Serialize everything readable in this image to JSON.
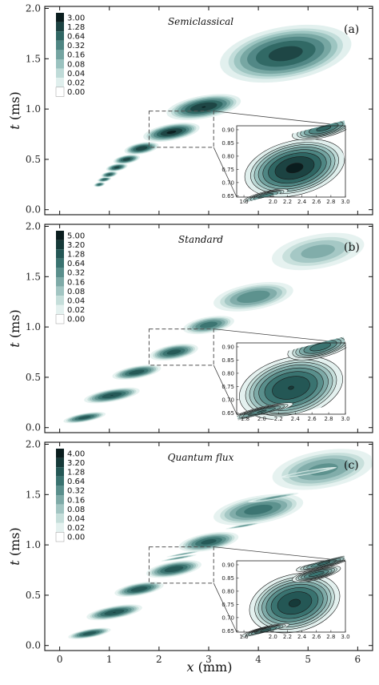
{
  "figure": {
    "xlabel_var": "x",
    "xlabel_unit": " (mm)",
    "ylabel_var": "t",
    "ylabel_unit": " (ms)"
  },
  "chart_data": [
    {
      "type": "heatmap",
      "title": "Semiclassical",
      "panel_label": "(a)",
      "xlim": [
        -0.3,
        6.3
      ],
      "ylim": [
        -0.05,
        2.02
      ],
      "x_ticks": [
        "0",
        "1",
        "2",
        "3",
        "4",
        "5",
        "6"
      ],
      "y_ticks": [
        "0.0",
        "0.5",
        "1.0",
        "1.5",
        "2.0"
      ],
      "colorbar_levels": [
        "3.00",
        "1.28",
        "0.64",
        "0.32",
        "0.16",
        "0.08",
        "0.04",
        "0.02",
        "0.00"
      ],
      "colors": [
        "#0a1d1e",
        "#1c4342",
        "#2f6663",
        "#4f8683",
        "#74a4a1",
        "#9ac2bf",
        "#bfdbd8",
        "#e0efed",
        "#ffffff"
      ],
      "blobs": [
        {
          "x": 0.8,
          "t": 0.25,
          "rx": 0.1,
          "rt": 0.02,
          "peak": 0.5
        },
        {
          "x": 0.9,
          "t": 0.3,
          "rx": 0.12,
          "rt": 0.02,
          "peak": 0.6
        },
        {
          "x": 1.0,
          "t": 0.35,
          "rx": 0.14,
          "rt": 0.025,
          "peak": 0.7
        },
        {
          "x": 1.15,
          "t": 0.42,
          "rx": 0.18,
          "rt": 0.03,
          "peak": 0.9
        },
        {
          "x": 1.35,
          "t": 0.5,
          "rx": 0.22,
          "rt": 0.035,
          "peak": 1.0
        },
        {
          "x": 1.65,
          "t": 0.61,
          "rx": 0.28,
          "rt": 0.045,
          "peak": 1.2
        },
        {
          "x": 2.25,
          "t": 0.77,
          "rx": 0.45,
          "rt": 0.065,
          "peak": 1.5
        },
        {
          "x": 2.9,
          "t": 1.02,
          "rx": 0.6,
          "rt": 0.09,
          "peak": 1.3
        },
        {
          "x": 4.55,
          "t": 1.55,
          "rx": 1.1,
          "rt": 0.22,
          "peak": 0.9
        }
      ],
      "streaks": [],
      "inset": {
        "xlim": [
          1.5,
          3.0
        ],
        "ylim": [
          0.645,
          0.915
        ],
        "x_ticks": [
          "1.6",
          "2.0",
          "2.2",
          "2.4",
          "2.6",
          "2.8",
          "3.0"
        ],
        "y_ticks": [
          "0.90",
          "0.85",
          "0.80",
          "0.75",
          "0.70",
          "0.65"
        ],
        "blobs": [
          {
            "x": 2.3,
            "t": 0.755,
            "rx": 0.55,
            "rt": 0.08,
            "peak": 1.5
          },
          {
            "x": 2.7,
            "t": 0.905,
            "rx": 0.4,
            "rt": 0.03,
            "peak": 0.4
          },
          {
            "x": 1.9,
            "t": 0.65,
            "rx": 0.3,
            "rt": 0.015,
            "peak": 0.25
          }
        ]
      }
    },
    {
      "type": "heatmap",
      "title": "Standard",
      "panel_label": "(b)",
      "xlim": [
        -0.3,
        6.3
      ],
      "ylim": [
        -0.05,
        2.02
      ],
      "x_ticks": [
        "0",
        "1",
        "2",
        "3",
        "4",
        "5",
        "6"
      ],
      "y_ticks": [
        "0.0",
        "0.5",
        "1.0",
        "1.5",
        "2.0"
      ],
      "colorbar_levels": [
        "5.00",
        "3.20",
        "1.28",
        "0.64",
        "0.32",
        "0.16",
        "0.08",
        "0.04",
        "0.02",
        "0.00"
      ],
      "colors": [
        "#0a1d1e",
        "#163a39",
        "#245755",
        "#3a7370",
        "#5a8f8c",
        "#7eaaa7",
        "#a2c5c2",
        "#c5deda",
        "#e4f1ef",
        "#ffffff"
      ],
      "blobs": [
        {
          "x": 0.5,
          "t": 0.1,
          "rx": 0.35,
          "rt": 0.035,
          "peak": 1.0
        },
        {
          "x": 1.05,
          "t": 0.32,
          "rx": 0.45,
          "rt": 0.05,
          "peak": 1.3
        },
        {
          "x": 1.55,
          "t": 0.55,
          "rx": 0.4,
          "rt": 0.05,
          "peak": 1.1
        },
        {
          "x": 2.3,
          "t": 0.75,
          "rx": 0.4,
          "rt": 0.06,
          "peak": 1.0
        },
        {
          "x": 3.0,
          "t": 1.02,
          "rx": 0.45,
          "rt": 0.07,
          "peak": 0.55
        },
        {
          "x": 3.9,
          "t": 1.3,
          "rx": 0.75,
          "rt": 0.12,
          "peak": 0.32
        },
        {
          "x": 5.2,
          "t": 1.75,
          "rx": 1.0,
          "rt": 0.18,
          "peak": 0.12
        }
      ],
      "streaks": [],
      "inset": {
        "xlim": [
          1.7,
          3.0
        ],
        "ylim": [
          0.645,
          0.915
        ],
        "x_ticks": [
          "1.8",
          "2.0",
          "2.2",
          "2.4",
          "2.6",
          "2.8",
          "3.0"
        ],
        "y_ticks": [
          "0.90",
          "0.85",
          "0.80",
          "0.75",
          "0.70",
          "0.65"
        ],
        "blobs": [
          {
            "x": 2.35,
            "t": 0.745,
            "rx": 0.5,
            "rt": 0.09,
            "peak": 1.3
          },
          {
            "x": 2.7,
            "t": 0.9,
            "rx": 0.35,
            "rt": 0.035,
            "peak": 0.5
          },
          {
            "x": 2.0,
            "t": 0.655,
            "rx": 0.35,
            "rt": 0.015,
            "peak": 0.35
          }
        ]
      }
    },
    {
      "type": "heatmap",
      "title": "Quantum flux",
      "panel_label": "(c)",
      "xlim": [
        -0.3,
        6.3
      ],
      "ylim": [
        -0.05,
        2.02
      ],
      "x_ticks": [
        "0",
        "1",
        "2",
        "3",
        "4",
        "5",
        "6"
      ],
      "y_ticks": [
        "0.0",
        "0.5",
        "1.0",
        "1.5",
        "2.0"
      ],
      "colorbar_levels": [
        "4.00",
        "3.20",
        "1.28",
        "0.64",
        "0.32",
        "0.16",
        "0.08",
        "0.04",
        "0.02",
        "0.00"
      ],
      "colors": [
        "#0a1d1e",
        "#163a39",
        "#245755",
        "#3a7370",
        "#5a8f8c",
        "#7eaaa7",
        "#a2c5c2",
        "#c5deda",
        "#e4f1ef",
        "#ffffff"
      ],
      "blobs": [
        {
          "x": 0.6,
          "t": 0.12,
          "rx": 0.35,
          "rt": 0.035,
          "peak": 1.1
        },
        {
          "x": 1.1,
          "t": 0.33,
          "rx": 0.45,
          "rt": 0.05,
          "peak": 1.3
        },
        {
          "x": 1.6,
          "t": 0.56,
          "rx": 0.4,
          "rt": 0.05,
          "peak": 1.2
        },
        {
          "x": 2.3,
          "t": 0.76,
          "rx": 0.45,
          "rt": 0.06,
          "peak": 1.2
        },
        {
          "x": 3.0,
          "t": 1.03,
          "rx": 0.5,
          "rt": 0.07,
          "peak": 0.9
        },
        {
          "x": 4.0,
          "t": 1.35,
          "rx": 0.8,
          "rt": 0.12,
          "peak": 0.5
        },
        {
          "x": 5.3,
          "t": 1.75,
          "rx": 1.0,
          "rt": 0.18,
          "peak": 0.22
        }
      ],
      "streaks": [
        {
          "x": 2.4,
          "t": 0.87,
          "rx": 0.35,
          "rt": 0.012,
          "peak": 0.22
        },
        {
          "x": 2.5,
          "t": 0.91,
          "rx": 0.35,
          "rt": 0.01,
          "peak": 0.18
        },
        {
          "x": 3.7,
          "t": 1.19,
          "rx": 0.35,
          "rt": 0.012,
          "peak": 0.22
        },
        {
          "x": 4.3,
          "t": 1.47,
          "rx": 0.5,
          "rt": 0.018,
          "peak": 0.22
        },
        {
          "x": 5.0,
          "t": 1.72,
          "rx": 0.6,
          "rt": 0.02,
          "peak": 0.15
        }
      ],
      "inset": {
        "xlim": [
          1.5,
          3.0
        ],
        "ylim": [
          0.645,
          0.915
        ],
        "x_ticks": [
          "1.6",
          "2.0",
          "2.2",
          "2.4",
          "2.6",
          "2.8",
          "3.0"
        ],
        "y_ticks": [
          "0.90",
          "0.85",
          "0.80",
          "0.75",
          "0.70",
          "0.65"
        ],
        "blobs": [
          {
            "x": 2.3,
            "t": 0.755,
            "rx": 0.5,
            "rt": 0.085,
            "peak": 1.4
          },
          {
            "x": 2.6,
            "t": 0.865,
            "rx": 0.3,
            "rt": 0.018,
            "peak": 0.5
          },
          {
            "x": 2.7,
            "t": 0.905,
            "rx": 0.35,
            "rt": 0.015,
            "peak": 0.4
          },
          {
            "x": 1.9,
            "t": 0.652,
            "rx": 0.3,
            "rt": 0.012,
            "peak": 0.4
          }
        ]
      }
    }
  ]
}
